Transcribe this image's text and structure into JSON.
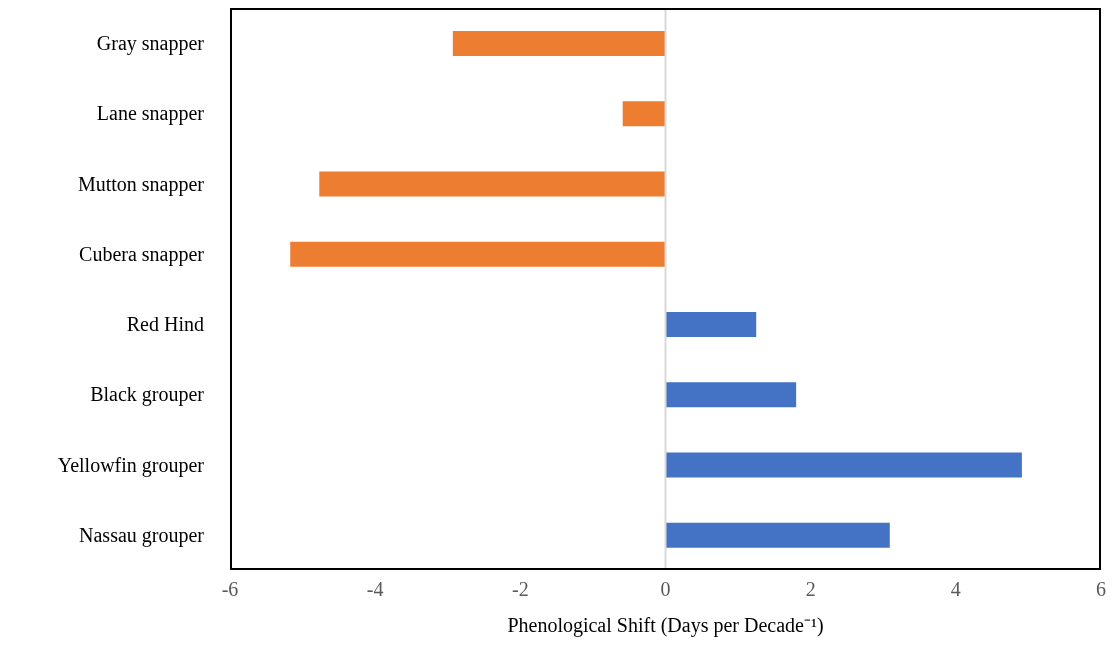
{
  "chart_data": {
    "type": "bar",
    "orientation": "horizontal",
    "xlabel": "Phenological Shift (Days per Decade⁻¹)",
    "categories": [
      "Gray snapper",
      "Lane snapper",
      "Mutton snapper",
      "Cubera snapper",
      "Red Hind",
      "Black grouper",
      "Yellowfin grouper",
      "Nassau grouper"
    ],
    "values": [
      -2.93,
      -0.59,
      -4.77,
      -5.17,
      1.25,
      1.8,
      4.91,
      3.09
    ],
    "colors": [
      "#ed7d31",
      "#ed7d31",
      "#ed7d31",
      "#ed7d31",
      "#4472c4",
      "#4472c4",
      "#4472c4",
      "#4472c4"
    ],
    "xlim": [
      -6,
      6
    ],
    "xticks": [
      -6,
      -4,
      -2,
      0,
      2,
      4,
      6
    ]
  }
}
